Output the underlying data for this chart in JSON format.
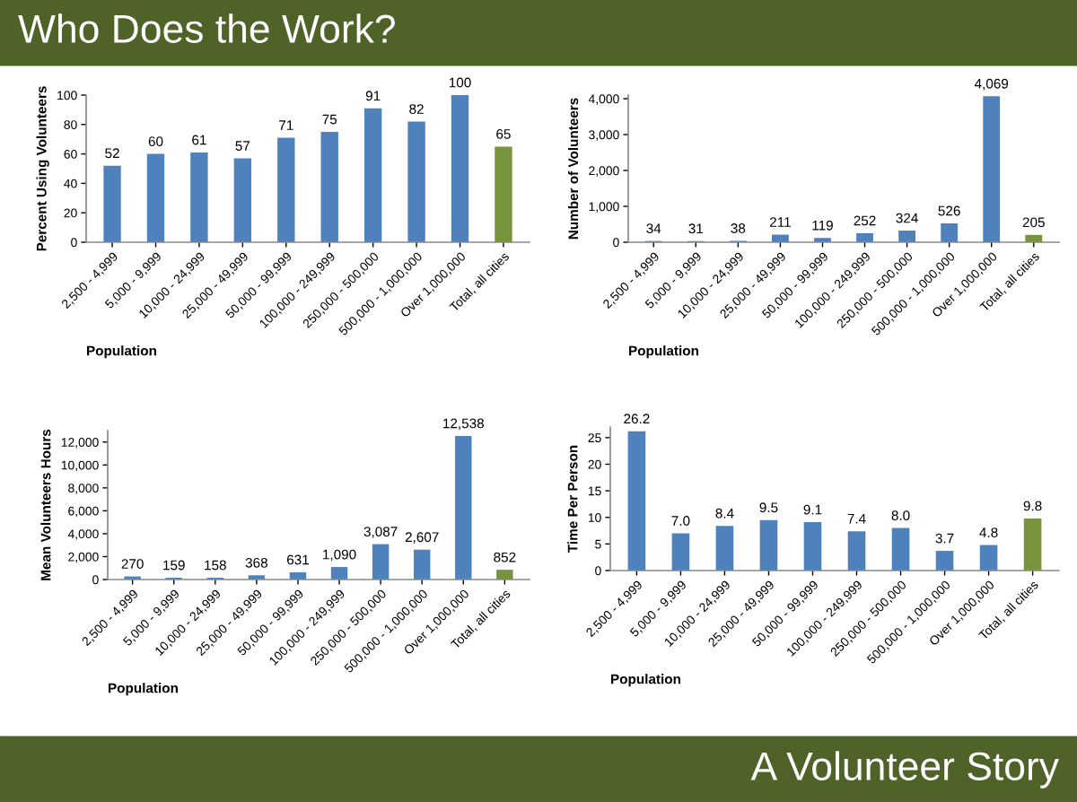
{
  "chart_data": [
    {
      "type": "bar",
      "title": "Who Does the Work?",
      "xlabel": "Population",
      "ylabel": "Percent Using Volunteers",
      "categories": [
        "2,500 - 4,999",
        "5,000 - 9,999",
        "10,000 - 24,999",
        "25,000 - 49,999",
        "50,000 - 99,999",
        "100,000 - 249,999",
        "250,000 - 500,000",
        "500,000 - 1,000,000",
        "Over 1,000,000",
        "Total, all cities"
      ],
      "values": [
        52,
        60,
        61,
        57,
        71,
        75,
        91,
        82,
        100,
        65
      ],
      "colors": [
        "#4f81bd",
        "#4f81bd",
        "#4f81bd",
        "#4f81bd",
        "#4f81bd",
        "#4f81bd",
        "#4f81bd",
        "#4f81bd",
        "#4f81bd",
        "#77933c"
      ],
      "data_labels": true,
      "ylim": [
        0,
        100
      ],
      "yticks": [
        0,
        20,
        40,
        60,
        80,
        100
      ],
      "grid": false,
      "legend": false
    },
    {
      "type": "bar",
      "xlabel": "Population",
      "ylabel": "Number of Volunteers",
      "categories": [
        "2,500 - 4,999",
        "5,000 - 9,999",
        "10,000 - 24,999",
        "25,000 - 49,999",
        "50,000 - 99,999",
        "100,000 - 249,999",
        "250,000 - 500,000",
        "500,000 - 1,000,000",
        "Over 1,000,000",
        "Total, all cities"
      ],
      "values": [
        34,
        31,
        38,
        211,
        119,
        252,
        324,
        526,
        4069,
        205
      ],
      "value_labels": [
        "34",
        "31",
        "38",
        "211",
        "119",
        "252",
        "324",
        "526",
        "4,069",
        "205"
      ],
      "colors": [
        "#4f81bd",
        "#4f81bd",
        "#4f81bd",
        "#4f81bd",
        "#4f81bd",
        "#4f81bd",
        "#4f81bd",
        "#4f81bd",
        "#4f81bd",
        "#77933c"
      ],
      "ylim": [
        0,
        4100
      ],
      "yticks": [
        0,
        {
          "value": 1000,
          "label": "1,000"
        },
        {
          "value": 2000,
          "label": "2,000"
        },
        {
          "value": 3000,
          "label": "3,000"
        },
        {
          "value": 4000,
          "label": "4,000"
        }
      ],
      "grid": false,
      "legend": false
    },
    {
      "type": "bar",
      "xlabel": "Population",
      "ylabel": "Mean Volunteers Hours",
      "categories": [
        "2,500 - 4,999",
        "5,000 - 9,999",
        "10,000 - 24,999",
        "25,000 - 49,999",
        "50,000 - 99,999",
        "100,000 - 249,999",
        "250,000 - 500,000",
        "500,000 - 1,000,000",
        "Over 1,000,000",
        "Total, all cities"
      ],
      "values": [
        270,
        159,
        158,
        368,
        631,
        1090,
        3087,
        2607,
        12538,
        852
      ],
      "value_labels": [
        "270",
        "159",
        "158",
        "368",
        "631",
        "1,090",
        "3,087",
        "2,607",
        "12,538",
        "852"
      ],
      "colors": [
        "#4f81bd",
        "#4f81bd",
        "#4f81bd",
        "#4f81bd",
        "#4f81bd",
        "#4f81bd",
        "#4f81bd",
        "#4f81bd",
        "#4f81bd",
        "#77933c"
      ],
      "ylim": [
        0,
        13000
      ],
      "yticks": [
        0,
        {
          "value": 2000,
          "label": "2,000"
        },
        {
          "value": 4000,
          "label": "4,000"
        },
        {
          "value": 6000,
          "label": "6,000"
        },
        {
          "value": 8000,
          "label": "8,000"
        },
        {
          "value": 10000,
          "label": "10,000"
        },
        {
          "value": 12000,
          "label": "12,000"
        }
      ],
      "grid": false,
      "legend": false
    },
    {
      "type": "bar",
      "xlabel": "Population",
      "ylabel": "Time Per Person",
      "annotations": [
        "A Volunteer Story"
      ],
      "categories": [
        "2,500 - 4,999",
        "5,000 - 9,999",
        "10,000 - 24,999",
        "25,000 - 49,999",
        "50,000 - 99,999",
        "100,000 - 249,999",
        "250,000 - 500,000",
        "500,000 - 1,000,000",
        "Over 1,000,000",
        "Total, all cities"
      ],
      "values": [
        26.2,
        7.0,
        8.4,
        9.5,
        9.1,
        7.4,
        8.0,
        3.7,
        4.8,
        9.8
      ],
      "value_labels": [
        "26.2",
        "7.0",
        "8.4",
        "9.5",
        "9.1",
        "7.4",
        "8.0",
        "3.7",
        "4.8",
        "9.8"
      ],
      "colors": [
        "#4f81bd",
        "#4f81bd",
        "#4f81bd",
        "#4f81bd",
        "#4f81bd",
        "#4f81bd",
        "#4f81bd",
        "#4f81bd",
        "#4f81bd",
        "#77933c"
      ],
      "ylim": [
        0,
        27
      ],
      "yticks": [
        0,
        5,
        10,
        15,
        20,
        25
      ],
      "grid": false,
      "legend": false
    }
  ]
}
